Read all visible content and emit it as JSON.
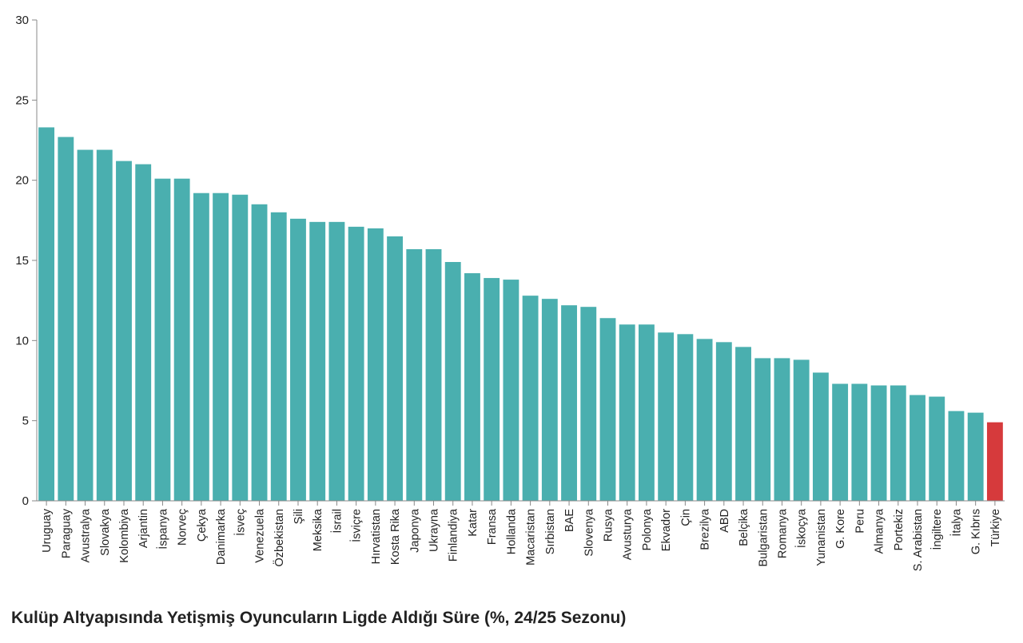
{
  "chart_data": {
    "type": "bar",
    "title": "Kulüp Altyapısında Yetişmiş Oyuncuların Ligde Aldığı Süre (%, 24/25 Sezonu)",
    "xlabel": "",
    "ylabel": "",
    "ylim": [
      0,
      30
    ],
    "yticks": [
      0,
      5,
      10,
      15,
      20,
      25,
      30
    ],
    "grid": false,
    "colors": {
      "default": "#4aafaf",
      "highlight": "#d63a3c"
    },
    "highlight": "Türkiye",
    "categories": [
      "Uruguay",
      "Paraguay",
      "Avustralya",
      "Slovakya",
      "Kolombiya",
      "Arjantin",
      "İspanya",
      "Norveç",
      "Çekya",
      "Danimarka",
      "İsveç",
      "Venezuela",
      "Özbekistan",
      "Şili",
      "Meksika",
      "İsrail",
      "İsviçre",
      "Hırvatistan",
      "Kosta Rika",
      "Japonya",
      "Ukrayna",
      "Finlandiya",
      "Katar",
      "Fransa",
      "Hollanda",
      "Macaristan",
      "Sırbistan",
      "BAE",
      "Slovenya",
      "Rusya",
      "Avusturya",
      "Polonya",
      "Ekvador",
      "Çin",
      "Brezilya",
      "ABD",
      "Belçika",
      "Bulgaristan",
      "Romanya",
      "İskoçya",
      "Yunanistan",
      "G. Kore",
      "Peru",
      "Almanya",
      "Portekiz",
      "S. Arabistan",
      "İngiltere",
      "İtalya",
      "G. Kıbrıs",
      "Türkiye"
    ],
    "values": [
      23.3,
      22.7,
      21.9,
      21.9,
      21.2,
      21.0,
      20.1,
      20.1,
      19.2,
      19.2,
      19.1,
      18.5,
      18.0,
      17.6,
      17.4,
      17.4,
      17.1,
      17.0,
      16.5,
      15.7,
      15.7,
      14.9,
      14.2,
      13.9,
      13.8,
      12.8,
      12.6,
      12.2,
      12.1,
      11.4,
      11.0,
      11.0,
      10.5,
      10.4,
      10.1,
      9.9,
      9.6,
      8.9,
      8.9,
      8.8,
      8.0,
      7.3,
      7.3,
      7.2,
      7.2,
      6.6,
      6.5,
      5.6,
      5.5,
      4.9
    ]
  }
}
